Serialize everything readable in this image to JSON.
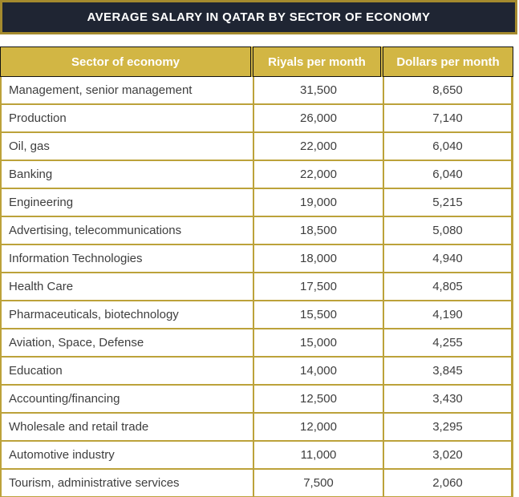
{
  "title": "AVERAGE SALARY IN QATAR BY SECTOR OF ECONOMY",
  "table": {
    "columns": [
      "Sector of economy",
      "Riyals per month",
      "Dollars per month"
    ],
    "rows": [
      [
        "Management, senior management",
        "31,500",
        "8,650"
      ],
      [
        "Production",
        "26,000",
        "7,140"
      ],
      [
        "Oil, gas",
        "22,000",
        "6,040"
      ],
      [
        "Banking",
        "22,000",
        "6,040"
      ],
      [
        "Engineering",
        "19,000",
        "5,215"
      ],
      [
        "Advertising, telecommunications",
        "18,500",
        "5,080"
      ],
      [
        "Information Technologies",
        "18,000",
        "4,940"
      ],
      [
        "Health Care",
        "17,500",
        "4,805"
      ],
      [
        "Pharmaceuticals, biotechnology",
        "15,500",
        "4,190"
      ],
      [
        "Aviation, Space, Defense",
        "15,000",
        "4,255"
      ],
      [
        "Education",
        "14,000",
        "3,845"
      ],
      [
        "Accounting/financing",
        "12,500",
        "3,430"
      ],
      [
        "Wholesale and retail trade",
        "12,000",
        "3,295"
      ],
      [
        "Automotive industry",
        "11,000",
        "3,020"
      ],
      [
        "Tourism, administrative services",
        "7,500",
        "2,060"
      ]
    ]
  },
  "colors": {
    "gold_header": "#d2b644",
    "gold_border": "#bca23a",
    "title_bar_background": "#1f2533",
    "title_bar_border": "#a48a2e",
    "header_outline": "#121212",
    "body_text": "#3e3e3e",
    "header_text": "#ffffff"
  },
  "chart_data": {
    "type": "table",
    "title": "AVERAGE SALARY IN QATAR BY SECTOR OF ECONOMY",
    "columns": [
      "Sector of economy",
      "Riyals per month",
      "Dollars per month"
    ],
    "rows": [
      [
        "Management, senior management",
        31500,
        8650
      ],
      [
        "Production",
        26000,
        7140
      ],
      [
        "Oil, gas",
        22000,
        6040
      ],
      [
        "Banking",
        22000,
        6040
      ],
      [
        "Engineering",
        19000,
        5215
      ],
      [
        "Advertising, telecommunications",
        18500,
        5080
      ],
      [
        "Information Technologies",
        18000,
        4940
      ],
      [
        "Health Care",
        17500,
        4805
      ],
      [
        "Pharmaceuticals, biotechnology",
        15500,
        4190
      ],
      [
        "Aviation, Space, Defense",
        15000,
        4255
      ],
      [
        "Education",
        14000,
        3845
      ],
      [
        "Accounting/financing",
        12500,
        3430
      ],
      [
        "Wholesale and retail trade",
        12000,
        3295
      ],
      [
        "Automotive industry",
        11000,
        3020
      ],
      [
        "Tourism, administrative services",
        7500,
        2060
      ]
    ]
  }
}
